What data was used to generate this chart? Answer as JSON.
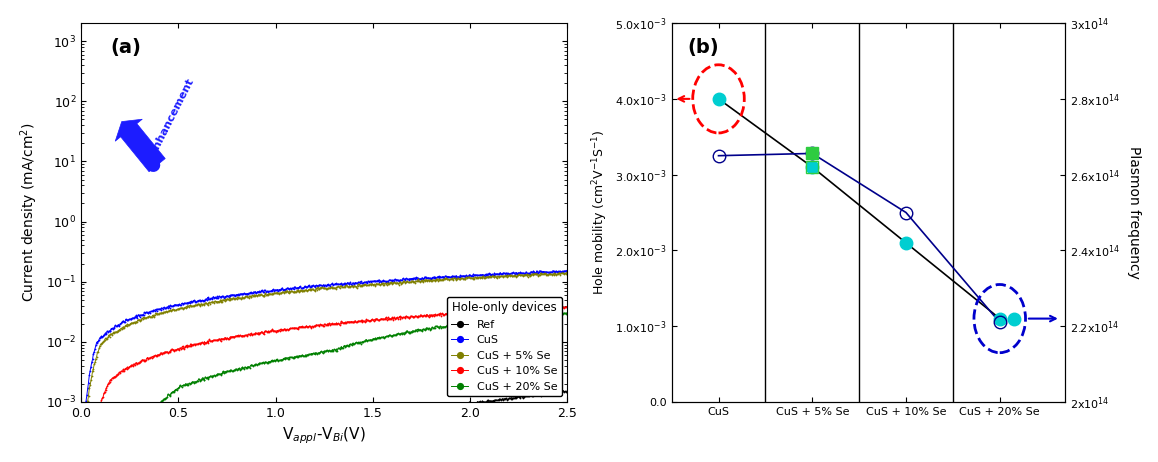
{
  "panel_a": {
    "title": "(a)",
    "xlabel": "V$_{appl}$-V$_{Bi}$(V)",
    "ylabel": "Current density (mA/cm$^2$)",
    "xlim": [
      0.0,
      2.5
    ],
    "legend_title": "Hole-only devices",
    "curves": [
      {
        "label": "Ref",
        "color": "#000000"
      },
      {
        "label": "CuS",
        "color": "#0000FF"
      },
      {
        "label": "CuS + 5% Se",
        "color": "#808000"
      },
      {
        "label": "CuS + 10% Se",
        "color": "#FF0000"
      },
      {
        "label": "CuS + 20% Se",
        "color": "#008000"
      }
    ]
  },
  "panel_b": {
    "title": "(b)",
    "categories": [
      "CuS",
      "CuS + 5% Se",
      "CuS + 10% Se",
      "CuS + 20% Se"
    ],
    "ylabel_left": "Hole mobility (cm$^2$V$^{-1}$S$^{-1}$)",
    "ylabel_right": "Plasmon frequency",
    "ylim_left": [
      0.0,
      0.005
    ],
    "ylim_right": [
      200000000000000.0,
      300000000000000.0
    ],
    "mobility_values": [
      0.00325,
      0.00328,
      0.0025,
      0.00105
    ],
    "plasmon_freq_values": [
      280000000000000.0,
      262000000000000.0,
      242000000000000.0,
      222000000000000.0
    ],
    "yticks_left": [
      0.0,
      0.001,
      0.002,
      0.003,
      0.004,
      0.005
    ],
    "ytick_labels_left": [
      "0.0",
      "1.0x10$^{-3}$",
      "2.0x10$^{-3}$",
      "3.0x10$^{-3}$",
      "4.0x10$^{-3}$",
      "5.0x10$^{-3}$"
    ],
    "yticks_right": [
      200000000000000.0,
      220000000000000.0,
      240000000000000.0,
      260000000000000.0,
      280000000000000.0,
      300000000000000.0
    ],
    "ytick_labels_right": [
      "2x10$^{14}$",
      "2.2x10$^{14}$",
      "2.4x10$^{14}$",
      "2.6x10$^{14}$",
      "2.8x10$^{14}$",
      "3x10$^{14}$"
    ]
  }
}
